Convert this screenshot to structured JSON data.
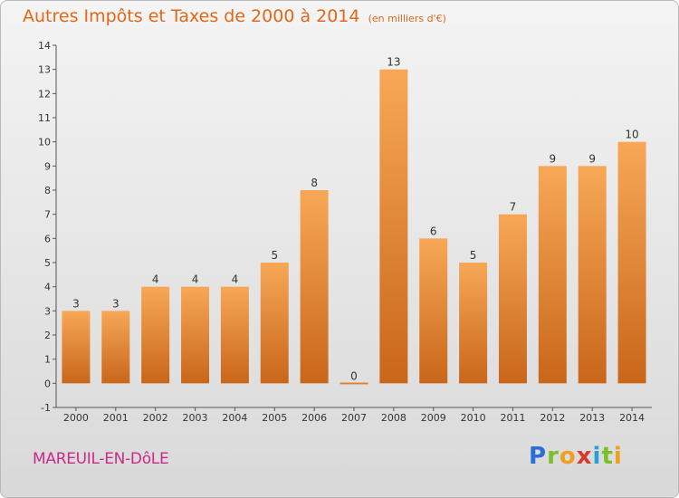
{
  "title": "Autres Impôts et Taxes de 2000 à 2014",
  "unit_note": "(en milliers d'€)",
  "commune": "MAREUIL-EN-DôLE",
  "logo": {
    "letters": [
      "P",
      "r",
      "o",
      "x",
      "i",
      "t",
      "i"
    ],
    "colors": [
      "#2a6fd6",
      "#7bbf2a",
      "#f0a020",
      "#d63a2a",
      "#2aa0d6",
      "#7bbf2a",
      "#f0a020"
    ]
  },
  "colors": {
    "bar_top": "#f7a857",
    "bar_bottom": "#c9661a",
    "text_accent": "#e06818"
  },
  "chart_data": {
    "type": "bar",
    "title": "Autres Impôts et Taxes de 2000 à 2014",
    "categories": [
      "2000",
      "2001",
      "2002",
      "2003",
      "2004",
      "2005",
      "2006",
      "2007",
      "2008",
      "2009",
      "2010",
      "2011",
      "2012",
      "2013",
      "2014"
    ],
    "values": [
      3,
      3,
      4,
      4,
      4,
      5,
      8,
      0,
      13,
      6,
      5,
      7,
      9,
      9,
      10
    ],
    "y_ticks": [
      "-1",
      "0",
      "1",
      "2",
      "3",
      "4",
      "5",
      "6",
      "7",
      "8",
      "9",
      "10",
      "11",
      "12",
      "13",
      "14"
    ],
    "ylim": [
      -1,
      14
    ],
    "grid": false,
    "xlabel": "",
    "ylabel": ""
  }
}
